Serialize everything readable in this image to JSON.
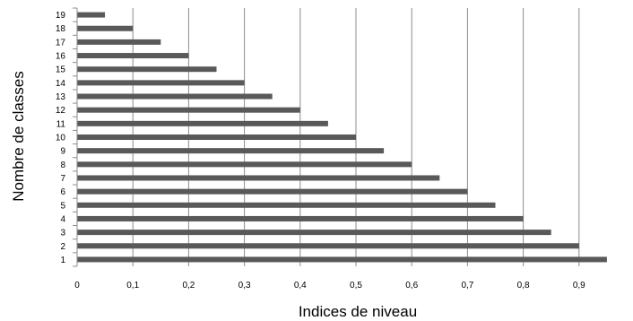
{
  "chart_data": {
    "type": "bar",
    "orientation": "horizontal",
    "xlabel": "Indices de niveau",
    "ylabel": "Nombre de classes",
    "xlim": [
      0,
      1
    ],
    "x_ticks": [
      "0",
      "0,1",
      "0,2",
      "0,3",
      "0,4",
      "0,5",
      "0,6",
      "0,7",
      "0,8",
      "0,9"
    ],
    "categories": [
      "1",
      "2",
      "3",
      "4",
      "5",
      "6",
      "7",
      "8",
      "9",
      "10",
      "11",
      "12",
      "13",
      "14",
      "15",
      "16",
      "17",
      "18",
      "19"
    ],
    "values": [
      0.95,
      0.9,
      0.85,
      0.8,
      0.75,
      0.7,
      0.65,
      0.6,
      0.55,
      0.5,
      0.45,
      0.4,
      0.35,
      0.3,
      0.25,
      0.2,
      0.15,
      0.1,
      0.05
    ],
    "grid": "vertical",
    "legend": "none",
    "bar_color": "#595959",
    "grid_color": "#8c8c8c"
  }
}
